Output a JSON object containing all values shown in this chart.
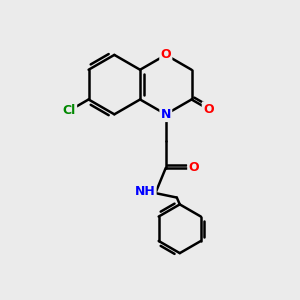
{
  "background_color": "#ebebeb",
  "bond_color": "#000000",
  "bond_width": 1.8,
  "atom_colors": {
    "O": "#ff0000",
    "N": "#0000ff",
    "Cl": "#008800",
    "C": "#000000"
  },
  "figsize": [
    3.0,
    3.0
  ],
  "dpi": 100
}
